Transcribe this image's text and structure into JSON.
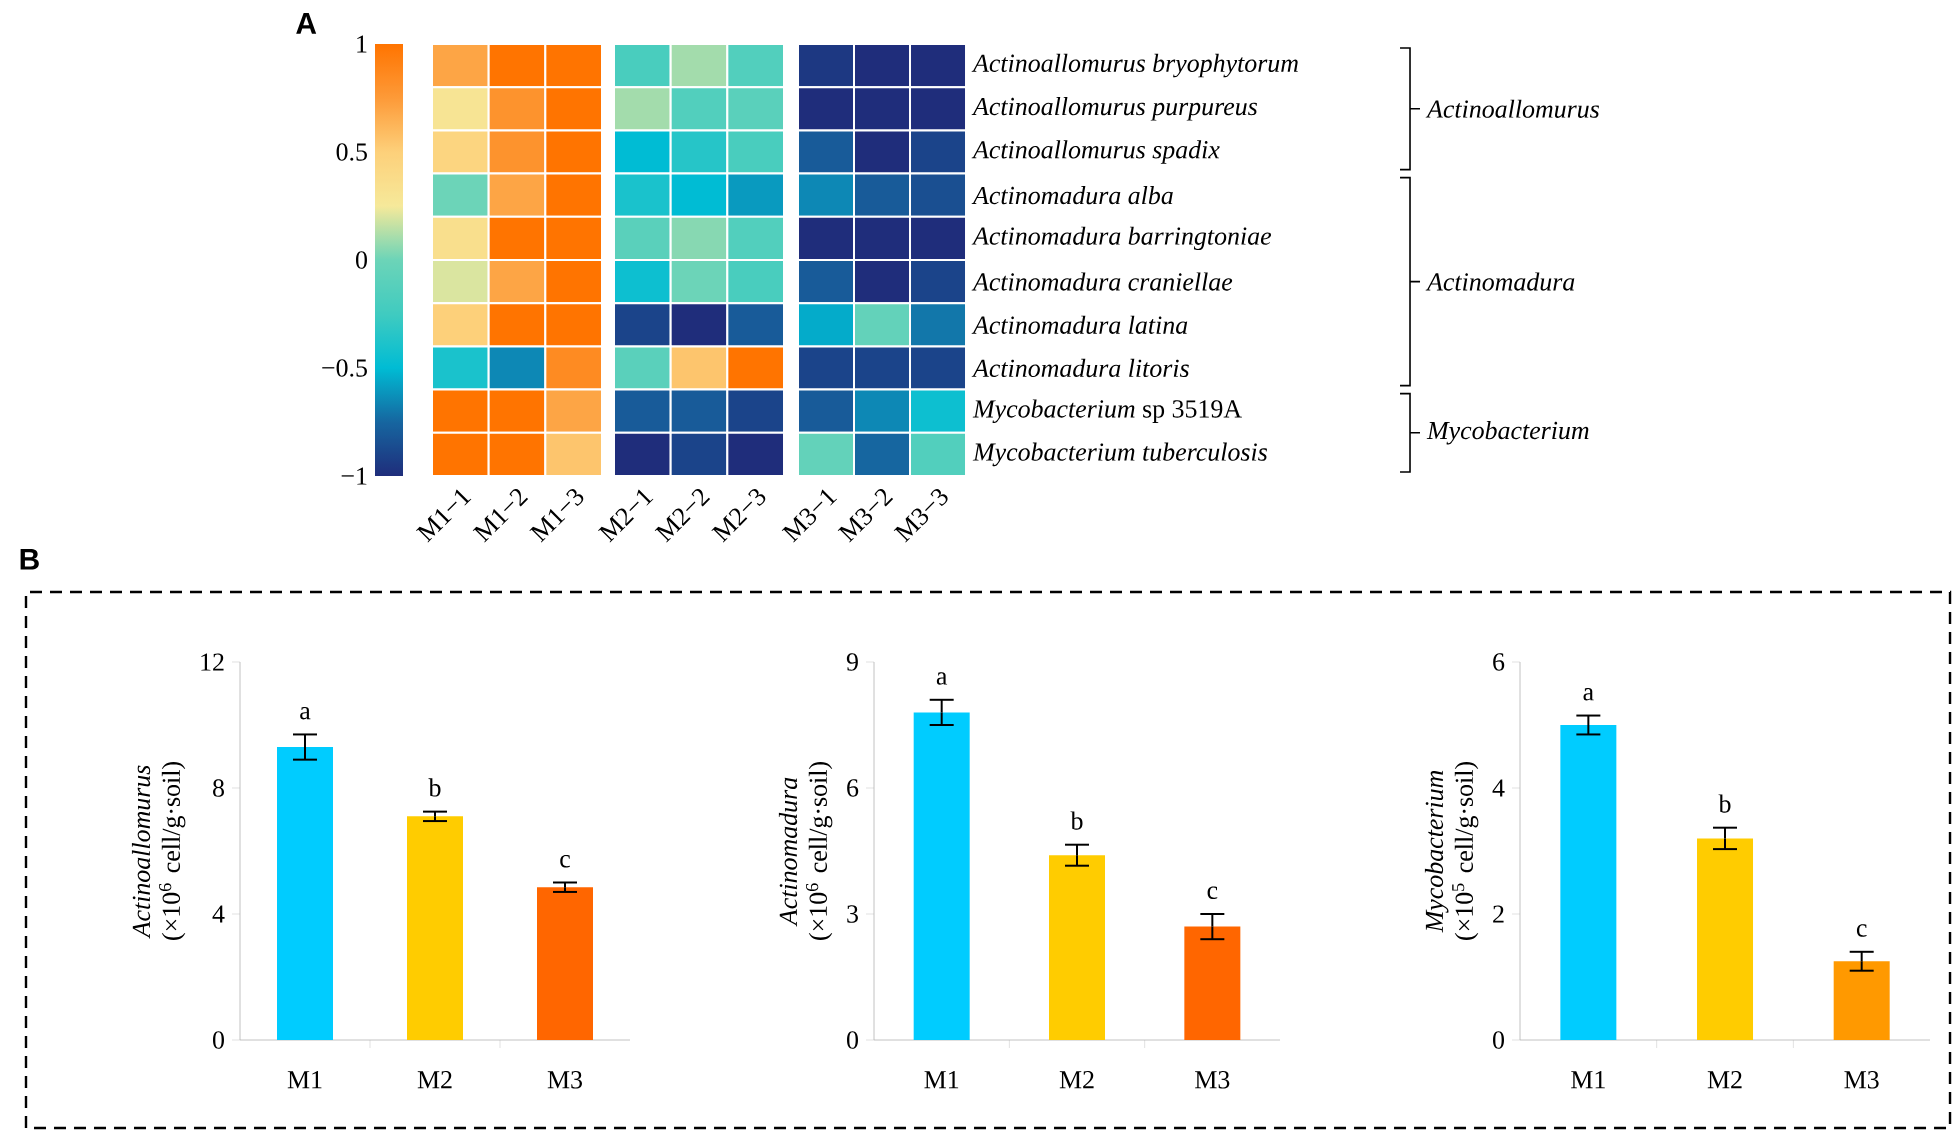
{
  "chart_data": [
    {
      "type": "heatmap",
      "title": "A",
      "categories": [
        "M1−1",
        "M1−2",
        "M1−3",
        "M2−1",
        "M2−2",
        "M2−3",
        "M3−1",
        "M3−2",
        "M3−3"
      ],
      "clim": [
        -1,
        1
      ],
      "cticks": [
        {
          "value": -1,
          "label": "−1"
        },
        {
          "value": -0.5,
          "label": "−0.5"
        },
        {
          "value": 0,
          "label": "0"
        },
        {
          "value": 0.5,
          "label": "0.5"
        },
        {
          "value": 1,
          "label": "1"
        }
      ],
      "y_categories": [
        "Actinoallomurus bryophytorum",
        "Actinoallomurus purpureus",
        "Actinoallomurus spadix",
        "Actinomadura alba",
        "Actinomadura barringtoniae",
        "Actinomadura craniellae",
        "Actinomadura latina",
        "Actinomadura litoris",
        "*Mycobacterium* sp 3519A",
        "Mycobacterium tuberculosis"
      ],
      "cells": [
        [
          0.7,
          1.0,
          1.0,
          -0.2,
          0.1,
          -0.15,
          -0.95,
          -1.0,
          -1.0
        ],
        [
          0.3,
          0.8,
          1.0,
          0.1,
          -0.15,
          -0.1,
          -1.0,
          -1.0,
          -1.0
        ],
        [
          0.45,
          0.8,
          1.0,
          -0.5,
          -0.35,
          -0.2,
          -0.8,
          -1.0,
          -0.9
        ],
        [
          0.0,
          0.7,
          1.0,
          -0.4,
          -0.5,
          -0.6,
          -0.65,
          -0.8,
          -0.85
        ],
        [
          0.35,
          1.0,
          1.0,
          -0.1,
          0.05,
          -0.15,
          -1.0,
          -1.0,
          -1.0
        ],
        [
          0.2,
          0.7,
          1.0,
          -0.45,
          0.0,
          -0.2,
          -0.8,
          -1.0,
          -0.9
        ],
        [
          0.5,
          1.0,
          1.0,
          -0.9,
          -1.0,
          -0.8,
          -0.55,
          -0.05,
          -0.7
        ],
        [
          -0.4,
          -0.65,
          0.85,
          -0.1,
          0.55,
          1.0,
          -0.9,
          -0.9,
          -0.9
        ],
        [
          1.0,
          1.0,
          0.7,
          -0.8,
          -0.8,
          -0.9,
          -0.8,
          -0.65,
          -0.45
        ],
        [
          1.0,
          1.0,
          0.55,
          -1.0,
          -0.9,
          -1.0,
          -0.05,
          -0.75,
          -0.15
        ]
      ],
      "annotations": [
        "Actinoallomurus",
        "Actinomadura",
        "Mycobacterium"
      ]
    },
    {
      "type": "bar",
      "title": "B",
      "ylabel": "*Actinoallomurus* (×10$^{6}$ cell/g·soil)",
      "categories": [
        "M1",
        "M2",
        "M3"
      ],
      "values": [
        9.3,
        7.1,
        4.85
      ],
      "errors": [
        0.4,
        0.15,
        0.15
      ],
      "colors": [
        "#00ccff",
        "#ffcc00",
        "#ff6600"
      ],
      "ylim": [
        0,
        12
      ],
      "yticks": [
        0,
        4,
        8,
        12
      ],
      "annotations": [
        "a",
        "b",
        "c"
      ]
    },
    {
      "type": "bar",
      "ylabel": "*Actinomadura* (×10$^{6}$ cell/g·soil)",
      "categories": [
        "M1",
        "M2",
        "M3"
      ],
      "values": [
        7.8,
        4.4,
        2.7
      ],
      "errors": [
        0.3,
        0.25,
        0.3
      ],
      "colors": [
        "#00ccff",
        "#ffcc00",
        "#ff6600"
      ],
      "ylim": [
        0,
        9
      ],
      "yticks": [
        0,
        3,
        6,
        9
      ],
      "annotations": [
        "a",
        "b",
        "c"
      ]
    },
    {
      "type": "bar",
      "ylabel": "*Mycobacterium* (×10$^{5}$ cell/g·soil)",
      "categories": [
        "M1",
        "M2",
        "M3"
      ],
      "values": [
        5.0,
        3.2,
        1.25
      ],
      "errors": [
        0.15,
        0.17,
        0.15
      ],
      "colors": [
        "#00ccff",
        "#ffcc00",
        "#ff9900"
      ],
      "ylim": [
        0,
        6
      ],
      "yticks": [
        0,
        2,
        4,
        6
      ],
      "annotations": [
        "a",
        "b",
        "c"
      ]
    }
  ]
}
